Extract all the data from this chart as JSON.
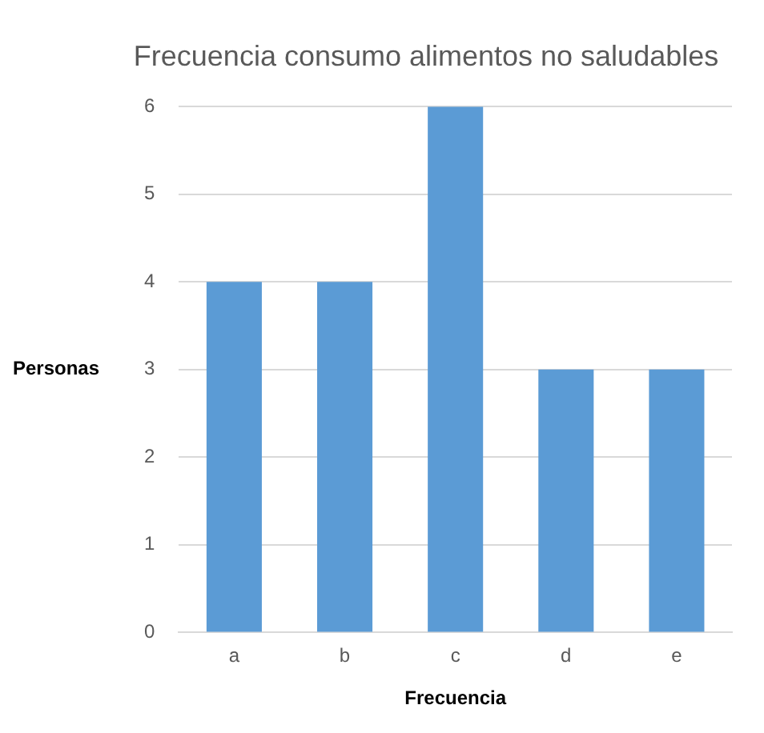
{
  "chart_data": {
    "type": "bar",
    "title": "Frecuencia consumo alimentos no saludables",
    "xlabel": "Frecuencia",
    "ylabel": "Personas",
    "categories": [
      "a",
      "b",
      "c",
      "d",
      "e"
    ],
    "values": [
      4,
      4,
      6,
      3,
      3
    ],
    "color": "#5b9bd5",
    "ylim": [
      0,
      6
    ],
    "yticks": [
      0,
      1,
      2,
      3,
      4,
      5,
      6
    ],
    "grid": "y"
  }
}
